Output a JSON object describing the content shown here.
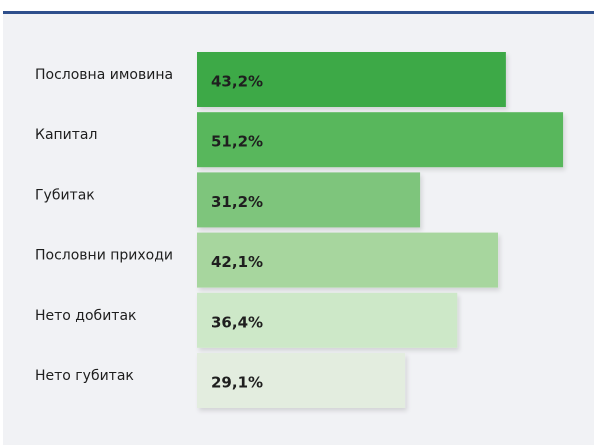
{
  "chart_data": {
    "type": "bar",
    "orientation": "horizontal",
    "categories": [
      "Пословна имовина",
      "Капитал",
      "Губитак",
      "Пословни приходи",
      "Нето добитак",
      "Нето губитак"
    ],
    "values": [
      43.2,
      51.2,
      31.2,
      42.1,
      36.4,
      29.1
    ],
    "value_labels": [
      "43,2%",
      "51,2%",
      "31,2%",
      "42,1%",
      "36,4%",
      "29,1%"
    ],
    "colors": [
      "#3ca947",
      "#58b75b",
      "#7ec57b",
      "#a7d69e",
      "#cde8c8",
      "#e3eddf"
    ]
  }
}
